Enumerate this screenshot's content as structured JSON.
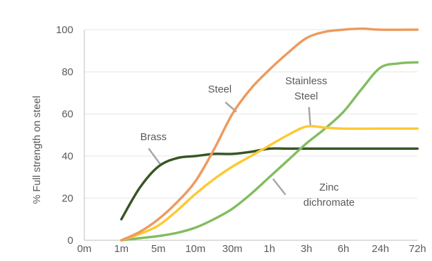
{
  "chart_data": {
    "type": "line",
    "title": "",
    "xlabel": "",
    "ylabel": "% Full strength on steel",
    "categories": [
      "0m",
      "1m",
      "5m",
      "10m",
      "30m",
      "1h",
      "3h",
      "6h",
      "24h",
      "72h"
    ],
    "y_ticks": [
      0,
      20,
      40,
      60,
      80,
      100
    ],
    "ylim": [
      0,
      100
    ],
    "grid": true,
    "legend": "none",
    "series": [
      {
        "name": "Brass",
        "color": "#375623",
        "points": [
          [
            1,
            10
          ],
          [
            1.5,
            25
          ],
          [
            2,
            35
          ],
          [
            2.5,
            39
          ],
          [
            3,
            40
          ],
          [
            3.5,
            41
          ],
          [
            4,
            41
          ],
          [
            4.5,
            42
          ],
          [
            5,
            43.5
          ],
          [
            5.5,
            43.5
          ],
          [
            6,
            43.5
          ],
          [
            7,
            43.5
          ],
          [
            8,
            43.5
          ],
          [
            9,
            43.5
          ]
        ]
      },
      {
        "name": "Steel",
        "color": "#ed9a5e",
        "points": [
          [
            1,
            0
          ],
          [
            1.5,
            4
          ],
          [
            2,
            10
          ],
          [
            2.5,
            18
          ],
          [
            3,
            28
          ],
          [
            3.5,
            43
          ],
          [
            4,
            60
          ],
          [
            4.5,
            72
          ],
          [
            5,
            81
          ],
          [
            5.5,
            89
          ],
          [
            6,
            96
          ],
          [
            6.5,
            99
          ],
          [
            7,
            100
          ],
          [
            7.5,
            100.5
          ],
          [
            8,
            100
          ],
          [
            9,
            100
          ]
        ]
      },
      {
        "name": "Stainless Steel",
        "color": "#ffc833",
        "points": [
          [
            1,
            0
          ],
          [
            1.5,
            3
          ],
          [
            2,
            7
          ],
          [
            2.5,
            14
          ],
          [
            3,
            22
          ],
          [
            3.5,
            29
          ],
          [
            4,
            35
          ],
          [
            4.5,
            40
          ],
          [
            5,
            45
          ],
          [
            5.5,
            50
          ],
          [
            6,
            54
          ],
          [
            6.5,
            53.5
          ],
          [
            7,
            53
          ],
          [
            8,
            53
          ],
          [
            9,
            53
          ]
        ]
      },
      {
        "name": "Zinc dichromate",
        "color": "#82bd5f",
        "points": [
          [
            1,
            0
          ],
          [
            1.5,
            1
          ],
          [
            2,
            2
          ],
          [
            2.5,
            3.5
          ],
          [
            3,
            6
          ],
          [
            3.5,
            10
          ],
          [
            4,
            15
          ],
          [
            4.5,
            22
          ],
          [
            5,
            30
          ],
          [
            5.5,
            38
          ],
          [
            6,
            46
          ],
          [
            6.5,
            53
          ],
          [
            7,
            61
          ],
          [
            7.5,
            72
          ],
          [
            8,
            82
          ],
          [
            8.5,
            84
          ],
          [
            9,
            84.5
          ]
        ]
      }
    ],
    "annotations": [
      {
        "series": "Brass",
        "lines": [
          "Brass"
        ]
      },
      {
        "series": "Steel",
        "lines": [
          "Steel"
        ]
      },
      {
        "series": "Stainless Steel",
        "lines": [
          "Stainless",
          "Steel"
        ]
      },
      {
        "series": "Zinc dichromate",
        "lines": [
          "Zinc",
          "dichromate"
        ]
      }
    ]
  }
}
